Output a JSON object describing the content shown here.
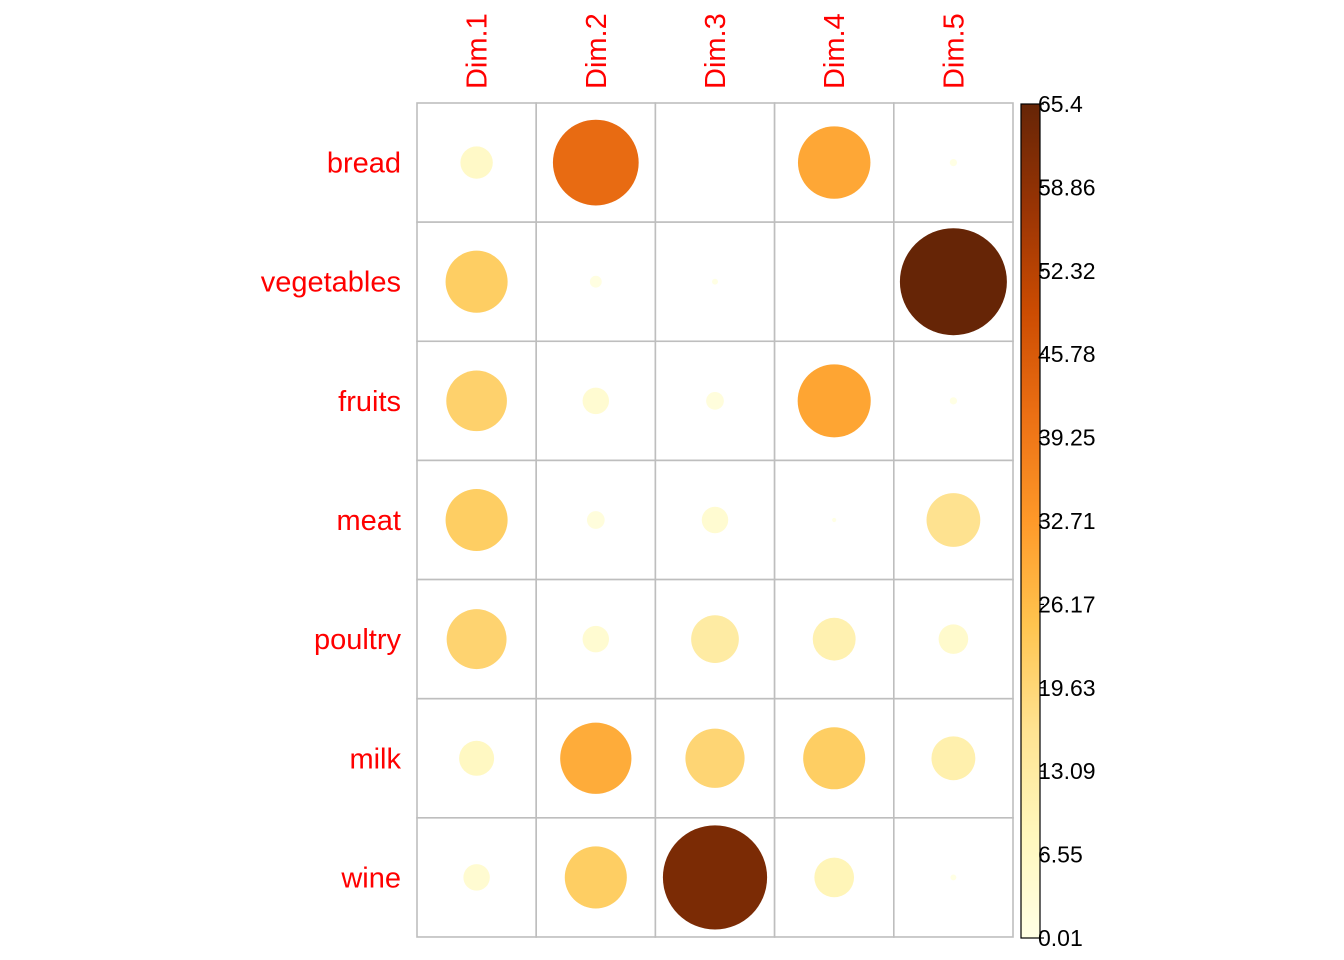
{
  "chart_data": {
    "type": "heatmap",
    "title": "",
    "columns": [
      "Dim.1",
      "Dim.2",
      "Dim.3",
      "Dim.4",
      "Dim.5"
    ],
    "rows": [
      "bread",
      "vegetables",
      "fruits",
      "meat",
      "poultry",
      "milk",
      "wine"
    ],
    "values": [
      [
        6.0,
        42.0,
        0.0,
        30.0,
        0.3
      ],
      [
        22.0,
        0.8,
        0.2,
        0.0,
        65.4
      ],
      [
        21.0,
        4.0,
        1.8,
        30.5,
        0.3
      ],
      [
        22.0,
        1.8,
        4.0,
        0.1,
        16.5
      ],
      [
        20.5,
        4.0,
        13.0,
        10.5,
        5.0
      ],
      [
        7.0,
        29.0,
        20.0,
        22.0,
        11.0
      ],
      [
        4.0,
        22.0,
        62.0,
        9.0,
        0.2
      ]
    ],
    "colorbar": {
      "min": 0.01,
      "max": 65.4,
      "tick_labels": [
        "0.01",
        "6.55",
        "13.09",
        "19.63",
        "26.17",
        "32.71",
        "39.25",
        "45.78",
        "52.32",
        "58.86",
        "65.4"
      ],
      "colors": [
        "#FFFFE5",
        "#FFF7BC",
        "#FEE391",
        "#FEC44F",
        "#FE9929",
        "#EC7014",
        "#CC4C02",
        "#993404",
        "#662506"
      ]
    },
    "label_color": "#FF0000",
    "grid": true,
    "marker": "circle (area proportional to value)"
  }
}
